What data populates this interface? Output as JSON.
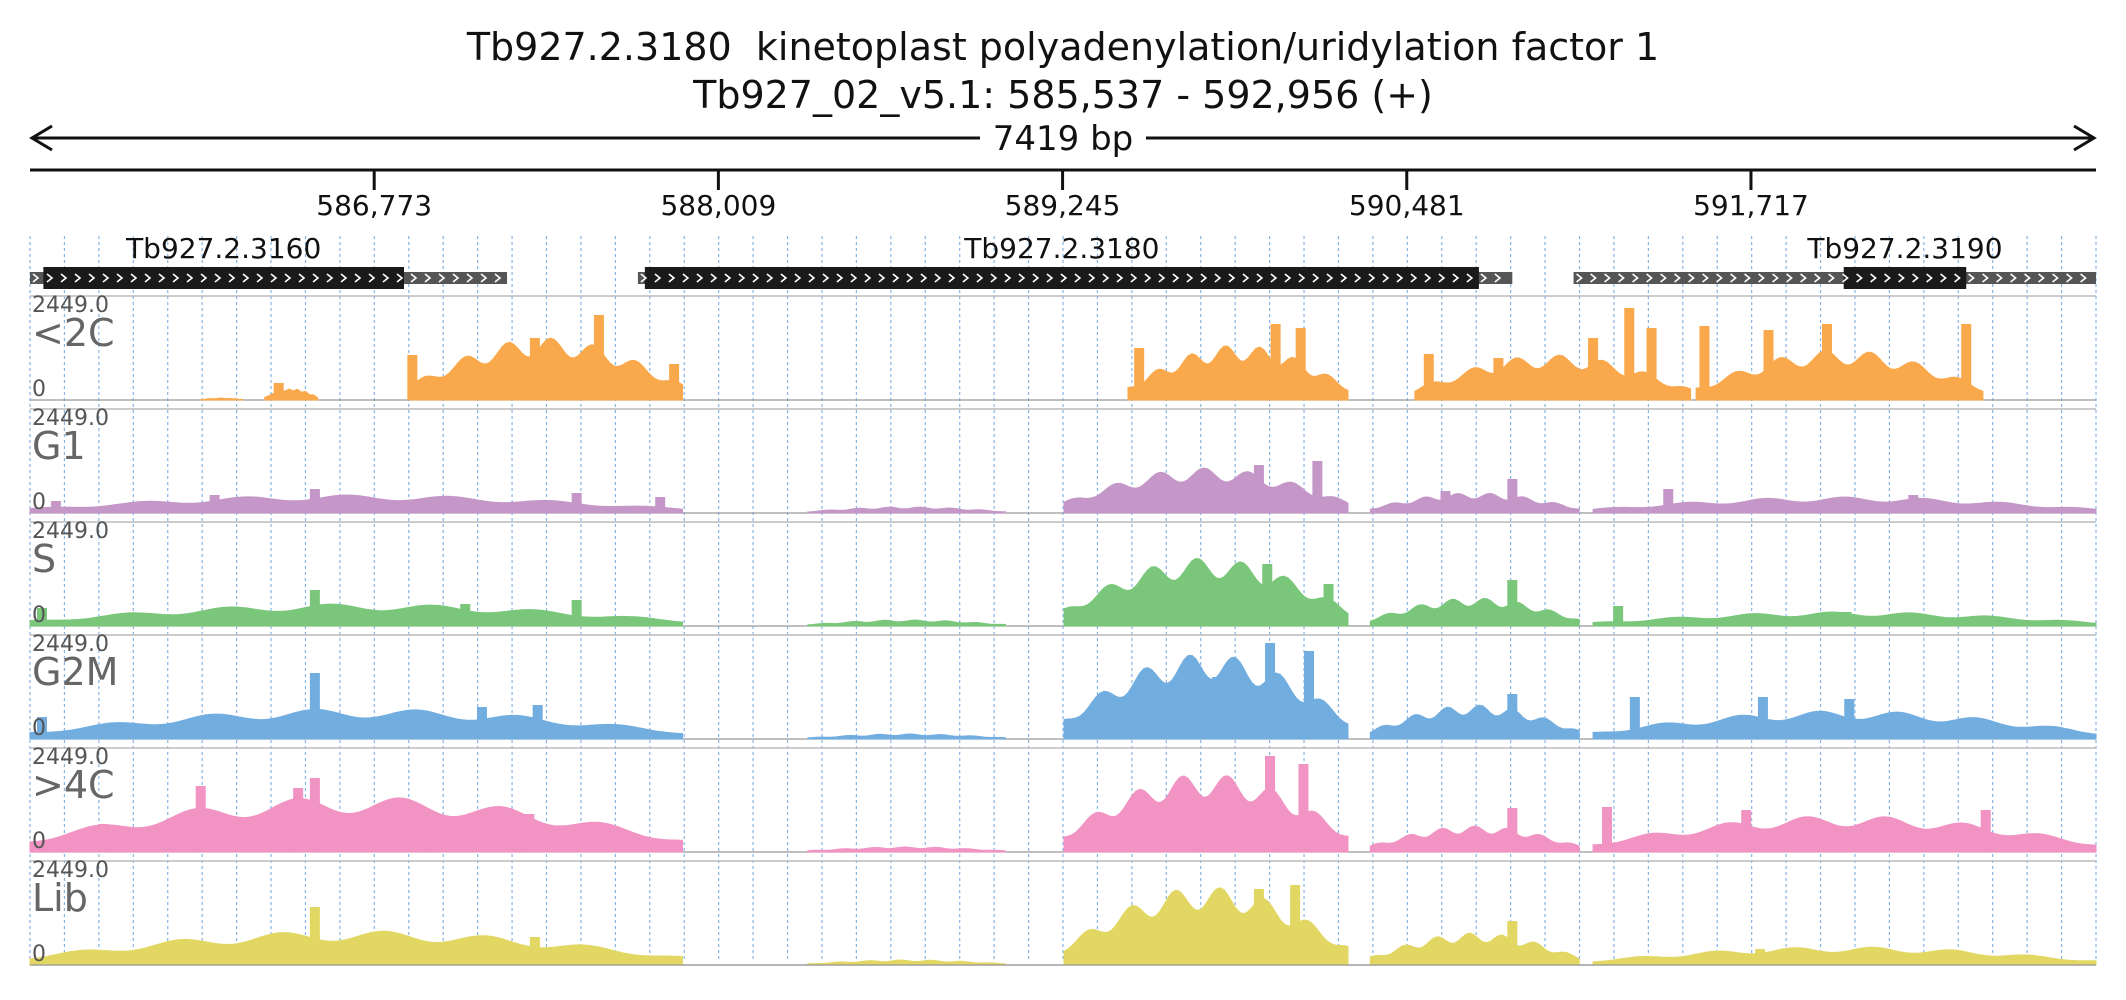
{
  "chart_data": {
    "type": "area",
    "title": "Tb927.2.3180  kinetoplast polyadenylation/uridylation factor 1",
    "subtitle": "Tb927_02_v5.1: 585,537 - 592,956 (+)",
    "span_label": "7419 bp",
    "region": {
      "start": 585537,
      "end": 592956
    },
    "ticks": [
      {
        "pos": 586773,
        "label": "586,773"
      },
      {
        "pos": 588009,
        "label": "588,009"
      },
      {
        "pos": 589245,
        "label": "589,245"
      },
      {
        "pos": 590481,
        "label": "590,481"
      },
      {
        "pos": 591717,
        "label": "591,717"
      }
    ],
    "genes": [
      {
        "name": "Tb927.2.3160",
        "start": 585537,
        "end": 587250,
        "cds_start": 585585,
        "cds_end": 586880
      },
      {
        "name": "Tb927.2.3180",
        "start": 587720,
        "end": 590860,
        "cds_start": 587745,
        "cds_end": 590740
      },
      {
        "name": "Tb927.2.3190",
        "start": 591080,
        "end": 592956,
        "cds_start": 592050,
        "cds_end": 592490
      }
    ],
    "y_max_label": "2449.0",
    "y_min_label": "0",
    "tracks": [
      {
        "name": "<2C",
        "color": "#f9a94b",
        "shift": 0,
        "segments": [
          {
            "start": 586150,
            "end": 586300,
            "peak": 0.02
          },
          {
            "start": 586380,
            "end": 586570,
            "peak": 0.12
          },
          {
            "start": 586900,
            "end": 587880,
            "peak": 0.62
          },
          {
            "start": 589480,
            "end": 590270,
            "peak": 0.55
          },
          {
            "start": 590510,
            "end": 591500,
            "peak": 0.45
          },
          {
            "start": 591520,
            "end": 592550,
            "peak": 0.5
          }
        ],
        "spikes": [
          {
            "pos": 586430,
            "h": 0.17
          },
          {
            "pos": 586910,
            "h": 0.45
          },
          {
            "pos": 587350,
            "h": 0.62
          },
          {
            "pos": 587580,
            "h": 0.85
          },
          {
            "pos": 587850,
            "h": 0.36
          },
          {
            "pos": 589520,
            "h": 0.52
          },
          {
            "pos": 590010,
            "h": 0.76
          },
          {
            "pos": 590100,
            "h": 0.72
          },
          {
            "pos": 590560,
            "h": 0.46
          },
          {
            "pos": 590810,
            "h": 0.42
          },
          {
            "pos": 591150,
            "h": 0.62
          },
          {
            "pos": 591280,
            "h": 0.92
          },
          {
            "pos": 591360,
            "h": 0.72
          },
          {
            "pos": 591550,
            "h": 0.74
          },
          {
            "pos": 591780,
            "h": 0.7
          },
          {
            "pos": 591990,
            "h": 0.76
          },
          {
            "pos": 592490,
            "h": 0.76
          }
        ]
      },
      {
        "name": "G1",
        "color": "#c497c8",
        "shift": 0,
        "segments": [
          {
            "start": 585537,
            "end": 587880,
            "peak": 0.18
          },
          {
            "start": 588330,
            "end": 589040,
            "peak": 0.06
          },
          {
            "start": 589250,
            "end": 590270,
            "peak": 0.45
          },
          {
            "start": 590350,
            "end": 591100,
            "peak": 0.2
          },
          {
            "start": 591150,
            "end": 592956,
            "peak": 0.16
          }
        ],
        "spikes": [
          {
            "pos": 585630,
            "h": 0.12
          },
          {
            "pos": 586200,
            "h": 0.18
          },
          {
            "pos": 586560,
            "h": 0.24
          },
          {
            "pos": 587500,
            "h": 0.2
          },
          {
            "pos": 587800,
            "h": 0.16
          },
          {
            "pos": 589760,
            "h": 0.42
          },
          {
            "pos": 589950,
            "h": 0.48
          },
          {
            "pos": 590160,
            "h": 0.52
          },
          {
            "pos": 590620,
            "h": 0.22
          },
          {
            "pos": 590860,
            "h": 0.34
          },
          {
            "pos": 591420,
            "h": 0.24
          },
          {
            "pos": 592300,
            "h": 0.18
          }
        ]
      },
      {
        "name": "S",
        "color": "#7ac77b",
        "shift": 0,
        "segments": [
          {
            "start": 585537,
            "end": 587880,
            "peak": 0.22
          },
          {
            "start": 588330,
            "end": 589040,
            "peak": 0.06
          },
          {
            "start": 589250,
            "end": 590270,
            "peak": 0.68
          },
          {
            "start": 590350,
            "end": 591100,
            "peak": 0.28
          },
          {
            "start": 591150,
            "end": 592956,
            "peak": 0.14
          }
        ],
        "spikes": [
          {
            "pos": 585580,
            "h": 0.18
          },
          {
            "pos": 586560,
            "h": 0.36
          },
          {
            "pos": 587100,
            "h": 0.22
          },
          {
            "pos": 587500,
            "h": 0.26
          },
          {
            "pos": 589720,
            "h": 0.55
          },
          {
            "pos": 589980,
            "h": 0.62
          },
          {
            "pos": 590200,
            "h": 0.42
          },
          {
            "pos": 590860,
            "h": 0.46
          },
          {
            "pos": 591240,
            "h": 0.2
          },
          {
            "pos": 592060,
            "h": 0.14
          }
        ]
      },
      {
        "name": "G2M",
        "color": "#72ade0",
        "shift": 0,
        "segments": [
          {
            "start": 585537,
            "end": 587880,
            "peak": 0.3
          },
          {
            "start": 588330,
            "end": 589040,
            "peak": 0.05
          },
          {
            "start": 589250,
            "end": 590270,
            "peak": 0.85
          },
          {
            "start": 590350,
            "end": 591100,
            "peak": 0.34
          },
          {
            "start": 591150,
            "end": 592956,
            "peak": 0.28
          }
        ],
        "spikes": [
          {
            "pos": 585580,
            "h": 0.22
          },
          {
            "pos": 586560,
            "h": 0.66
          },
          {
            "pos": 587160,
            "h": 0.32
          },
          {
            "pos": 587360,
            "h": 0.34
          },
          {
            "pos": 589800,
            "h": 0.62
          },
          {
            "pos": 589990,
            "h": 0.96
          },
          {
            "pos": 590130,
            "h": 0.88
          },
          {
            "pos": 590860,
            "h": 0.45
          },
          {
            "pos": 591300,
            "h": 0.42
          },
          {
            "pos": 591760,
            "h": 0.42
          },
          {
            "pos": 592070,
            "h": 0.4
          }
        ]
      },
      {
        "name": ">4C",
        "color": "#f193c3",
        "shift": 0,
        "segments": [
          {
            "start": 585537,
            "end": 587880,
            "peak": 0.55
          },
          {
            "start": 588330,
            "end": 589040,
            "peak": 0.05
          },
          {
            "start": 589250,
            "end": 590270,
            "peak": 0.78
          },
          {
            "start": 590350,
            "end": 591100,
            "peak": 0.26
          },
          {
            "start": 591150,
            "end": 592956,
            "peak": 0.36
          }
        ],
        "spikes": [
          {
            "pos": 585800,
            "h": 0.28
          },
          {
            "pos": 586150,
            "h": 0.66
          },
          {
            "pos": 586500,
            "h": 0.64
          },
          {
            "pos": 586560,
            "h": 0.74
          },
          {
            "pos": 586940,
            "h": 0.4
          },
          {
            "pos": 587330,
            "h": 0.38
          },
          {
            "pos": 589740,
            "h": 0.48
          },
          {
            "pos": 589990,
            "h": 0.96
          },
          {
            "pos": 590110,
            "h": 0.88
          },
          {
            "pos": 590860,
            "h": 0.44
          },
          {
            "pos": 591200,
            "h": 0.45
          },
          {
            "pos": 591700,
            "h": 0.42
          },
          {
            "pos": 592560,
            "h": 0.42
          }
        ]
      },
      {
        "name": "Lib",
        "color": "#e2d762",
        "shift": 0,
        "segments": [
          {
            "start": 585537,
            "end": 587880,
            "peak": 0.34
          },
          {
            "start": 588330,
            "end": 589040,
            "peak": 0.05
          },
          {
            "start": 589250,
            "end": 590270,
            "peak": 0.78
          },
          {
            "start": 590350,
            "end": 591100,
            "peak": 0.32
          },
          {
            "start": 591150,
            "end": 592956,
            "peak": 0.18
          }
        ],
        "spikes": [
          {
            "pos": 586560,
            "h": 0.58
          },
          {
            "pos": 587160,
            "h": 0.26
          },
          {
            "pos": 587350,
            "h": 0.28
          },
          {
            "pos": 589740,
            "h": 0.42
          },
          {
            "pos": 589950,
            "h": 0.76
          },
          {
            "pos": 590080,
            "h": 0.8
          },
          {
            "pos": 590860,
            "h": 0.44
          },
          {
            "pos": 591750,
            "h": 0.16
          }
        ]
      }
    ]
  }
}
